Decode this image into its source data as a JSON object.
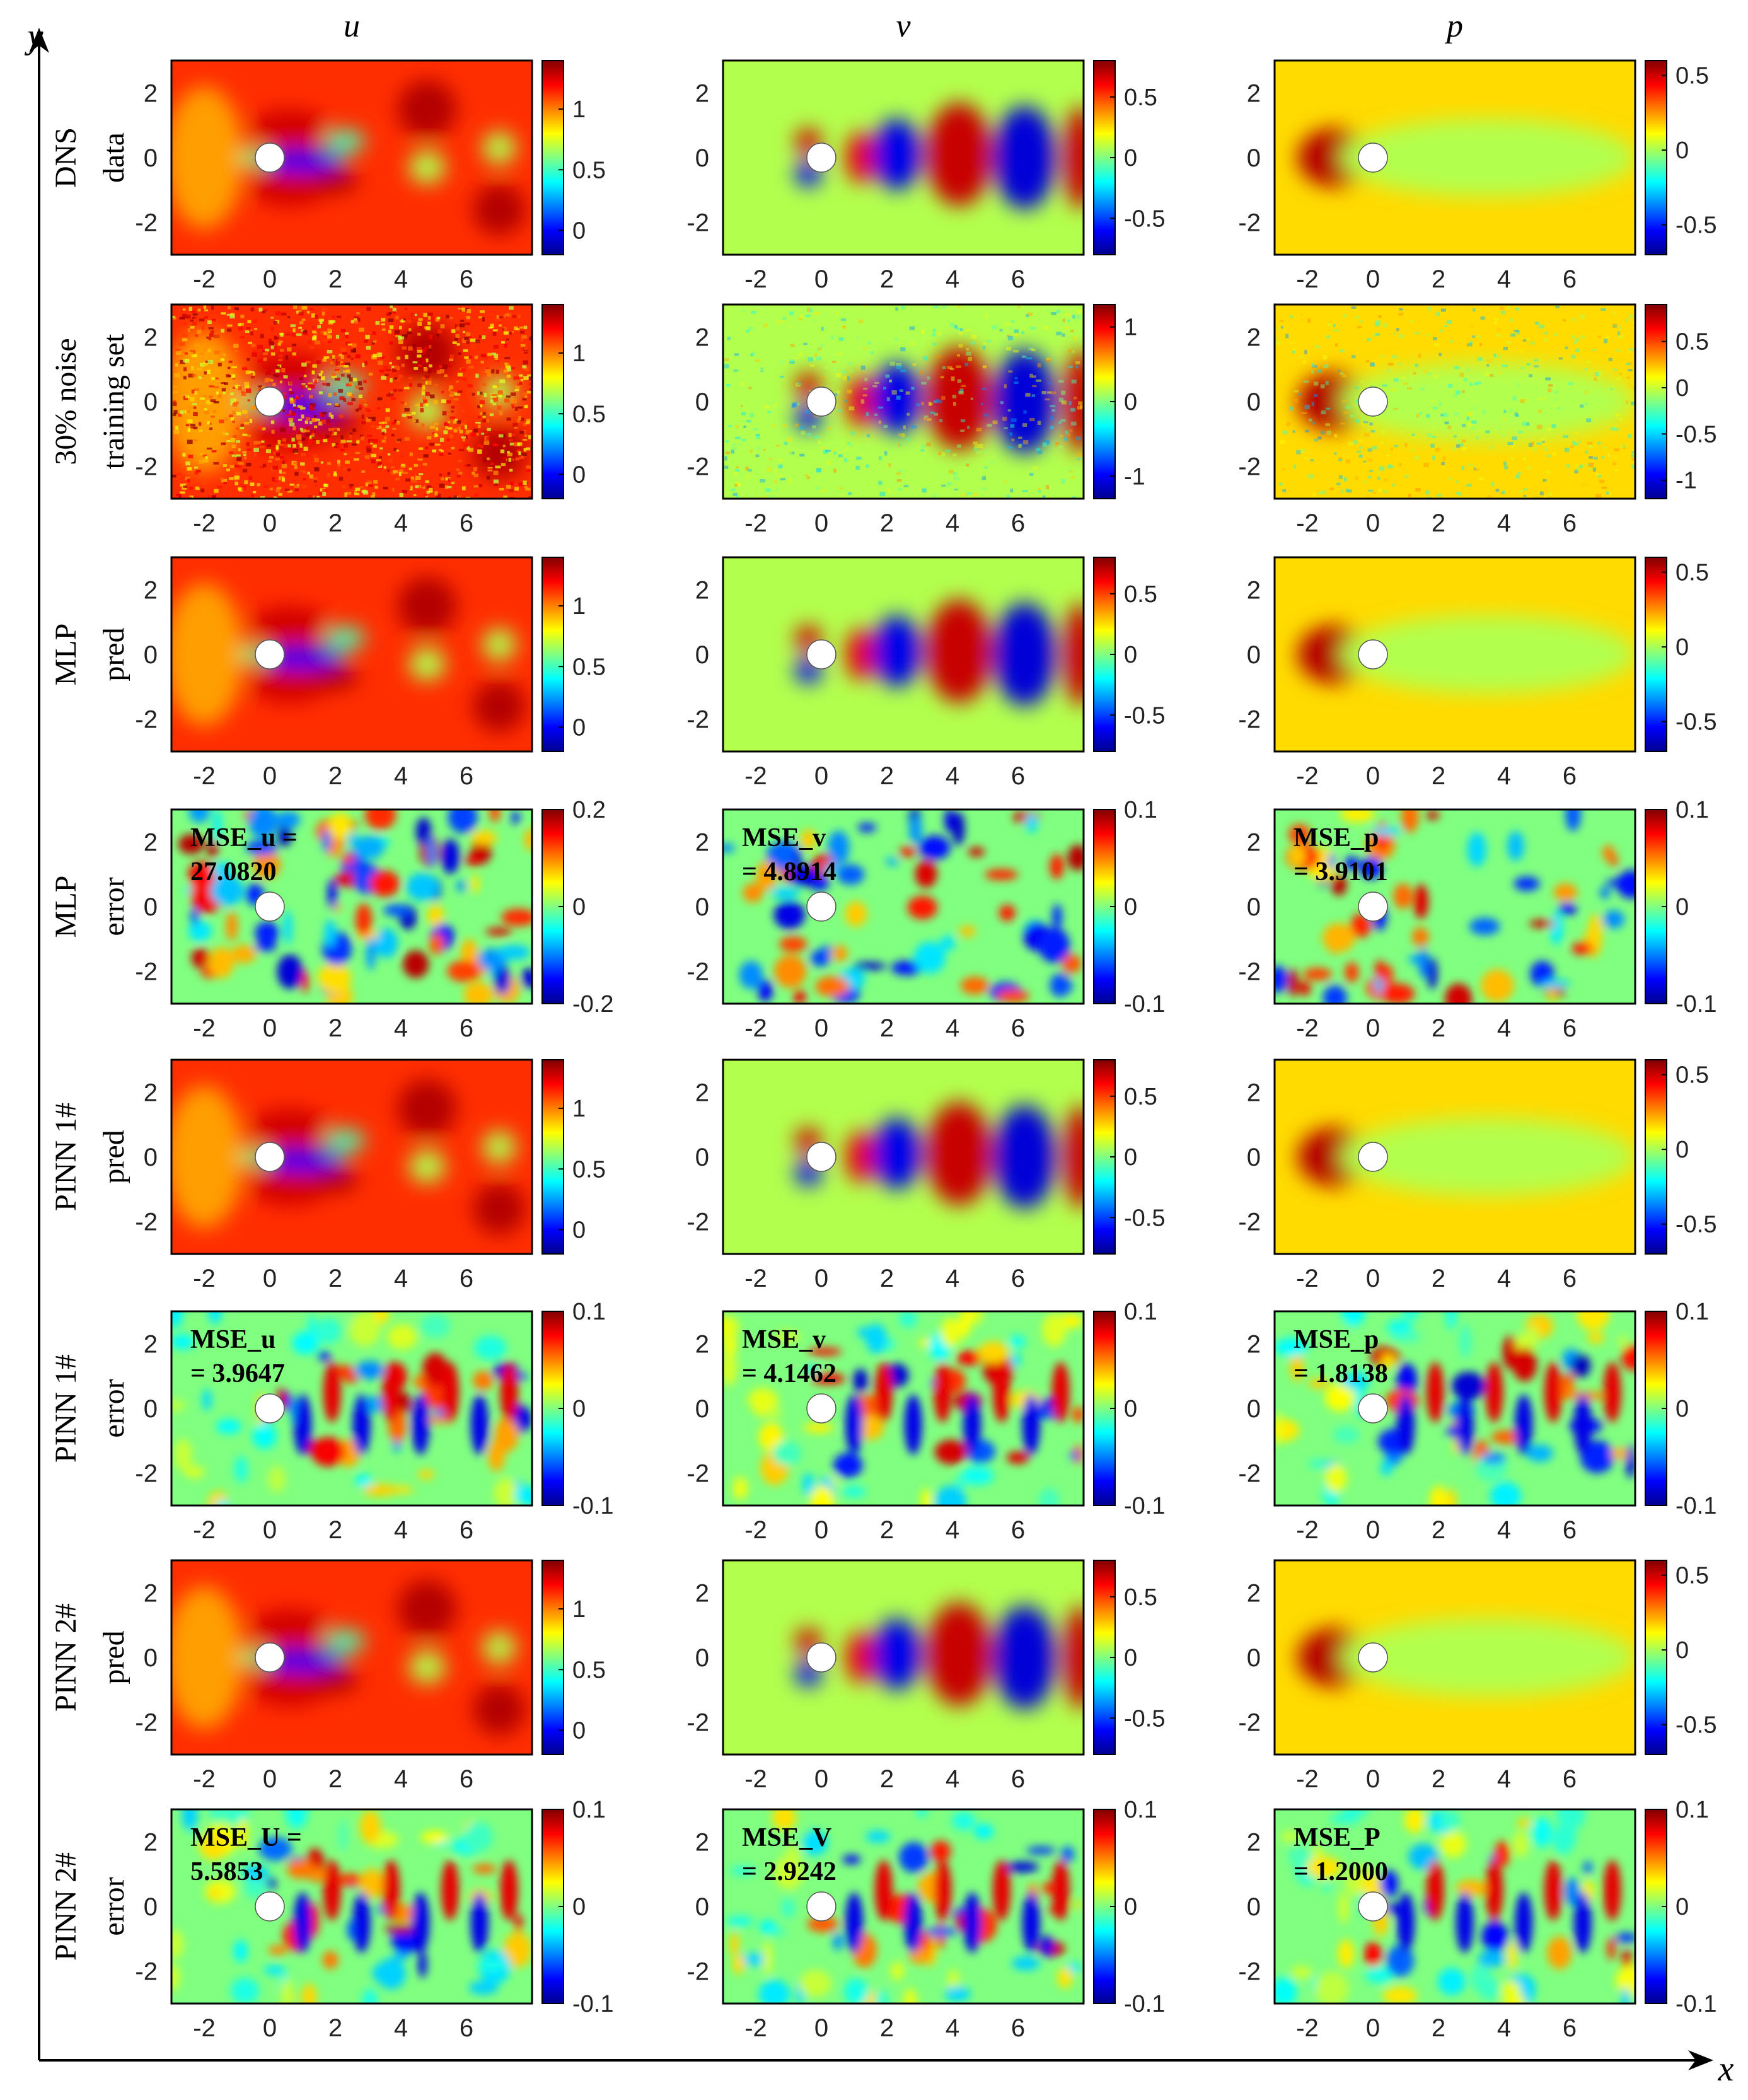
{
  "figure": {
    "global_x_label": "x",
    "global_y_label": "y"
  },
  "colors": {
    "colormap": [
      "#00008f",
      "#0000ff",
      "#0080ff",
      "#00ffff",
      "#80ff80",
      "#ffff00",
      "#ff8000",
      "#ff0000",
      "#800000"
    ],
    "cylinder_fill": "#ffffff",
    "frame": "#000000"
  },
  "chart_data": {
    "type": "heatmap",
    "description_axes": {
      "xlim": [
        -3,
        8
      ],
      "ylim": [
        -3,
        3
      ],
      "x_ticks": [
        -2,
        0,
        2,
        4,
        6
      ],
      "y_ticks": [
        -2,
        0,
        2
      ]
    },
    "columns": [
      {
        "key": "u",
        "title": "u"
      },
      {
        "key": "v",
        "title": "v"
      },
      {
        "key": "p",
        "title": "p"
      }
    ],
    "rows": [
      {
        "label": "DNS",
        "sublabel": "data",
        "kind": "field",
        "panels": [
          {
            "cbar_ticks": [
              "1",
              "0.5",
              "0"
            ],
            "cbar_range": [
              -0.2,
              1.4
            ]
          },
          {
            "cbar_ticks": [
              "0.5",
              "0",
              "-0.5"
            ],
            "cbar_range": [
              -0.8,
              0.8
            ]
          },
          {
            "cbar_ticks": [
              "0.5",
              "0",
              "-0.5"
            ],
            "cbar_range": [
              -0.7,
              0.6
            ]
          }
        ]
      },
      {
        "label": "30% noise",
        "sublabel": "training set",
        "kind": "noisy",
        "panels": [
          {
            "cbar_ticks": [
              "1",
              "0.5",
              "0"
            ],
            "cbar_range": [
              -0.2,
              1.4
            ]
          },
          {
            "cbar_ticks": [
              "1",
              "0",
              "-1"
            ],
            "cbar_range": [
              -1.3,
              1.3
            ]
          },
          {
            "cbar_ticks": [
              "0.5",
              "0",
              "-0.5",
              "-1"
            ],
            "cbar_range": [
              -1.2,
              0.9
            ]
          }
        ]
      },
      {
        "label": "MLP",
        "sublabel": "pred",
        "kind": "field",
        "panels": [
          {
            "cbar_ticks": [
              "1",
              "0.5",
              "0"
            ],
            "cbar_range": [
              -0.2,
              1.4
            ]
          },
          {
            "cbar_ticks": [
              "0.5",
              "0",
              "-0.5"
            ],
            "cbar_range": [
              -0.8,
              0.8
            ]
          },
          {
            "cbar_ticks": [
              "0.5",
              "0",
              "-0.5"
            ],
            "cbar_range": [
              -0.7,
              0.6
            ]
          }
        ]
      },
      {
        "label": "MLP",
        "sublabel": "error",
        "kind": "error",
        "panels": [
          {
            "cbar_ticks": [
              "0.2",
              "0",
              "-0.2"
            ],
            "cbar_range": [
              -0.2,
              0.2
            ],
            "mse_line1": "MSE_u =",
            "mse_line2": "27.0820"
          },
          {
            "cbar_ticks": [
              "0.1",
              "0",
              "-0.1"
            ],
            "cbar_range": [
              -0.1,
              0.1
            ],
            "mse_line1": "MSE_v",
            "mse_line2": "= 4.8914"
          },
          {
            "cbar_ticks": [
              "0.1",
              "0",
              "-0.1"
            ],
            "cbar_range": [
              -0.1,
              0.1
            ],
            "mse_line1": "MSE_p",
            "mse_line2": "= 3.9101"
          }
        ]
      },
      {
        "label": "PINN 1#",
        "sublabel": "pred",
        "kind": "field",
        "panels": [
          {
            "cbar_ticks": [
              "1",
              "0.5",
              "0"
            ],
            "cbar_range": [
              -0.2,
              1.4
            ]
          },
          {
            "cbar_ticks": [
              "0.5",
              "0",
              "-0.5"
            ],
            "cbar_range": [
              -0.8,
              0.8
            ]
          },
          {
            "cbar_ticks": [
              "0.5",
              "0",
              "-0.5"
            ],
            "cbar_range": [
              -0.7,
              0.6
            ]
          }
        ]
      },
      {
        "label": "PINN 1#",
        "sublabel": "error",
        "kind": "error",
        "panels": [
          {
            "cbar_ticks": [
              "0.1",
              "0",
              "-0.1"
            ],
            "cbar_range": [
              -0.1,
              0.1
            ],
            "mse_line1": "MSE_u",
            "mse_line2": "= 3.9647"
          },
          {
            "cbar_ticks": [
              "0.1",
              "0",
              "-0.1"
            ],
            "cbar_range": [
              -0.1,
              0.1
            ],
            "mse_line1": "MSE_v",
            "mse_line2": "= 4.1462"
          },
          {
            "cbar_ticks": [
              "0.1",
              "0",
              "-0.1"
            ],
            "cbar_range": [
              -0.1,
              0.1
            ],
            "mse_line1": "MSE_p",
            "mse_line2": "= 1.8138"
          }
        ]
      },
      {
        "label": "PINN 2#",
        "sublabel": "pred",
        "kind": "field",
        "panels": [
          {
            "cbar_ticks": [
              "1",
              "0.5",
              "0"
            ],
            "cbar_range": [
              -0.2,
              1.4
            ]
          },
          {
            "cbar_ticks": [
              "0.5",
              "0",
              "-0.5"
            ],
            "cbar_range": [
              -0.8,
              0.8
            ]
          },
          {
            "cbar_ticks": [
              "0.5",
              "0",
              "-0.5"
            ],
            "cbar_range": [
              -0.7,
              0.6
            ]
          }
        ]
      },
      {
        "label": "PINN 2#",
        "sublabel": "error",
        "kind": "error",
        "panels": [
          {
            "cbar_ticks": [
              "0.1",
              "0",
              "-0.1"
            ],
            "cbar_range": [
              -0.1,
              0.1
            ],
            "mse_line1": "MSE_U =",
            "mse_line2": "5.5853"
          },
          {
            "cbar_ticks": [
              "0.1",
              "0",
              "-0.1"
            ],
            "cbar_range": [
              -0.1,
              0.1
            ],
            "mse_line1": "MSE_V",
            "mse_line2": "= 2.9242"
          },
          {
            "cbar_ticks": [
              "0.1",
              "0",
              "-0.1"
            ],
            "cbar_range": [
              -0.1,
              0.1
            ],
            "mse_line1": "MSE_P",
            "mse_line2": "= 1.2000"
          }
        ]
      }
    ]
  }
}
